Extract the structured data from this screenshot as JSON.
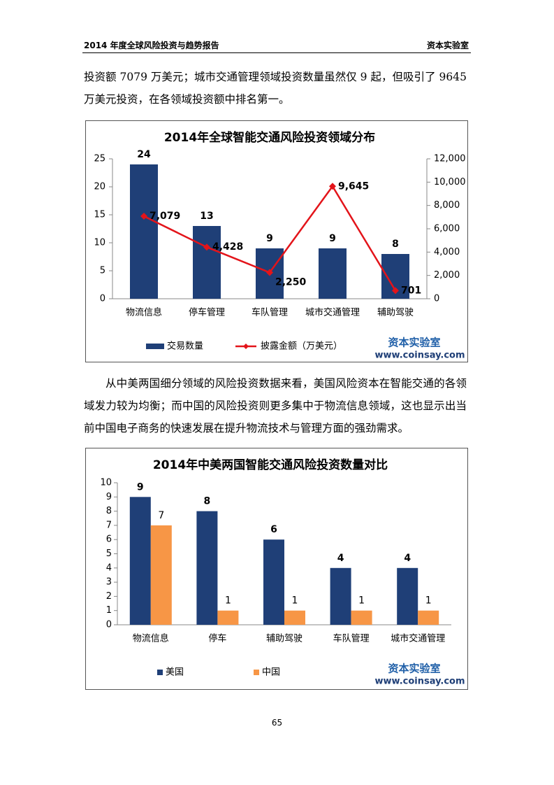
{
  "header": {
    "title": "2014 年度全球风险投资与趋势报告",
    "org": "资本实验室"
  },
  "paragraphs": [
    "投资额 7079 万美元；城市交通管理领域投资数量虽然仅 9 起，但吸引了 9645 万美元投资，在各领域投资额中排名第一。",
    "从中美两国细分领域的风险投资数据来看，美国风险资本在智能交通的各领域发力较为均衡；而中国的风险投资则更多集中于物流信息领域，这也显示出当前中国电子商务的快速发展在提升物流技术与管理方面的强劲需求。"
  ],
  "watermark": {
    "name": "资本实验室",
    "url": "www.coinsay.com"
  },
  "chart_data": [
    {
      "type": "combo",
      "title": "2014年全球智能交通风险投资领域分布",
      "categories": [
        "物流信息",
        "停车管理",
        "车队管理",
        "城市交通管理",
        "辅助驾驶"
      ],
      "series": [
        {
          "name": "交易数量",
          "type": "bar",
          "color": "#1f3f77",
          "values": [
            24,
            13,
            9,
            9,
            8
          ]
        },
        {
          "name": "披露金额（万美元）",
          "type": "line",
          "axis": "y2",
          "color": "#e3141a",
          "values": [
            7079,
            4428,
            2250,
            9645,
            701
          ],
          "value_labels": [
            "7,079",
            "4,428",
            "2,250",
            "9,645",
            "701"
          ]
        }
      ],
      "ylim": [
        0,
        25
      ],
      "yticks": [
        0,
        5,
        10,
        15,
        20,
        25
      ],
      "y2lim": [
        0,
        12000
      ],
      "y2ticks": [
        0,
        {
          "value": 2000,
          "label": "2,000"
        },
        {
          "value": 4000,
          "label": "4,000"
        },
        {
          "value": 6000,
          "label": "6,000"
        },
        {
          "value": 8000,
          "label": "8,000"
        },
        {
          "value": 10000,
          "label": "10,000"
        },
        {
          "value": 12000,
          "label": "12,000"
        }
      ],
      "grid": false,
      "legend": "bottom"
    },
    {
      "type": "bar",
      "title": "2014年中美两国智能交通风险投资数量对比",
      "categories": [
        "物流信息",
        "停车",
        "辅助驾驶",
        "车队管理",
        "城市交通管理"
      ],
      "series": [
        {
          "name": "美国",
          "color": "#1f3f77",
          "values": [
            9,
            8,
            6,
            4,
            4
          ]
        },
        {
          "name": "中国",
          "color": "#f79646",
          "values": [
            7,
            1,
            1,
            1,
            1
          ]
        }
      ],
      "ylim": [
        0,
        10
      ],
      "yticks": [
        0,
        1,
        2,
        3,
        4,
        5,
        6,
        7,
        8,
        9,
        10
      ],
      "grid": false,
      "legend": "bottom"
    }
  ],
  "page_number": "65"
}
